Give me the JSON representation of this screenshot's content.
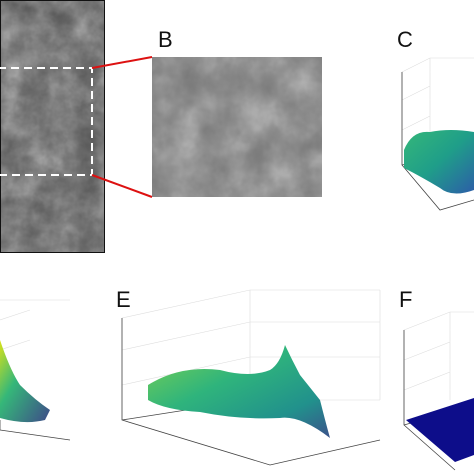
{
  "panels": [
    {
      "label": "B"
    },
    {
      "label": "C"
    },
    {
      "label": "E"
    },
    {
      "label": "F"
    }
  ]
}
